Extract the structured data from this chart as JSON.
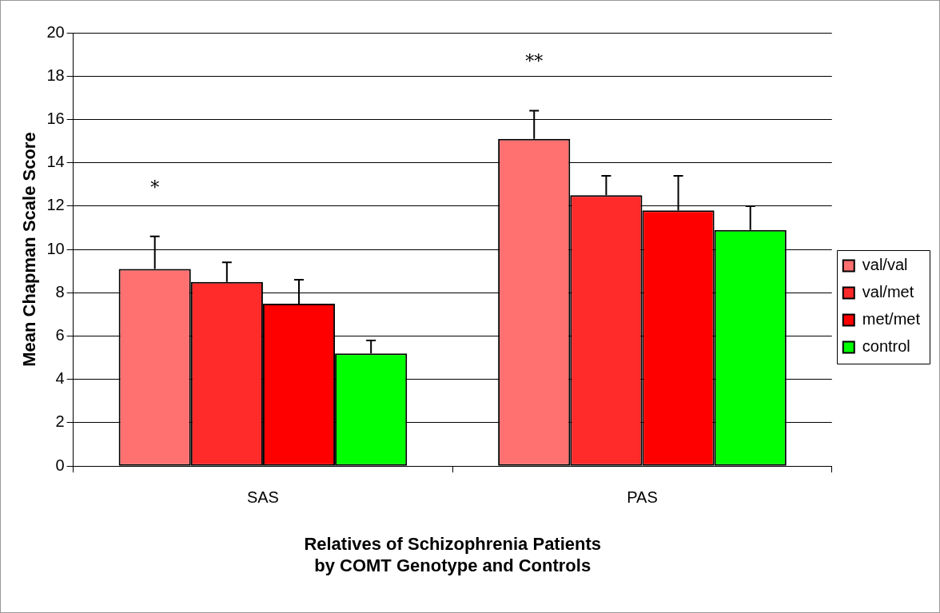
{
  "chart_data": {
    "type": "bar",
    "xlabel": "Relatives of Schizophrenia Patients\nby COMT Genotype and Controls",
    "ylabel": "Mean Chapman Scale Score",
    "categories": [
      "SAS",
      "PAS"
    ],
    "series": [
      {
        "name": "val/val",
        "color": "#ff7070",
        "values": [
          9.1,
          15.1
        ],
        "errors": [
          [
            9.1,
            10.6
          ],
          [
            15.1,
            16.4
          ]
        ]
      },
      {
        "name": "val/met",
        "color": "#ff2a2a",
        "values": [
          8.5,
          12.5
        ],
        "errors": [
          [
            8.5,
            9.4
          ],
          [
            12.5,
            13.4
          ]
        ]
      },
      {
        "name": "met/met",
        "color": "#ff0000",
        "values": [
          7.5,
          11.8
        ],
        "errors": [
          [
            7.5,
            8.6
          ],
          [
            11.8,
            13.4
          ]
        ]
      },
      {
        "name": "control",
        "color": "#00ff00",
        "values": [
          5.2,
          10.9
        ],
        "errors": [
          [
            5.2,
            5.8
          ],
          [
            10.9,
            12.0
          ]
        ]
      }
    ],
    "ylim": [
      0,
      20
    ],
    "yticks": [
      0,
      2,
      4,
      6,
      8,
      10,
      12,
      14,
      16,
      18,
      20
    ],
    "grid": "y",
    "legend": "right",
    "annotations": [
      "*",
      "**"
    ]
  }
}
